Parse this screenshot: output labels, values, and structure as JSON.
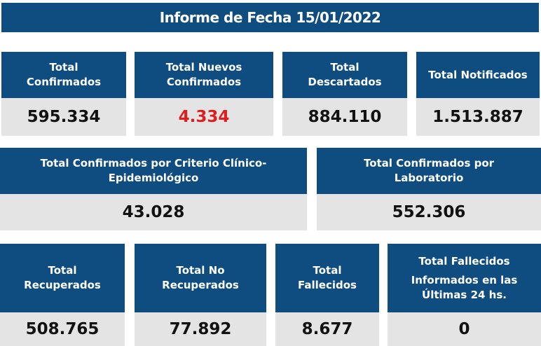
{
  "banner": {
    "title": "Informe de Fecha 15/01/2022"
  },
  "row1": [
    {
      "line1": "Total",
      "line2": "Confirmados",
      "value": "595.334"
    },
    {
      "line1": "Total Nuevos",
      "line2": "Confirmados",
      "value": "4.334"
    },
    {
      "line1": "Total",
      "line2": "Descartados",
      "value": "884.110"
    },
    {
      "line1": "Total Notificados",
      "line2": "",
      "value": "1.513.887"
    }
  ],
  "row2": [
    {
      "line1": "Total Confirmados por Criterio Clínico-",
      "line2": "Epidemiológico",
      "value": "43.028"
    },
    {
      "line1": "Total Confirmados por",
      "line2": "Laboratorio",
      "value": "552.306"
    }
  ],
  "row3": [
    {
      "line1": "Total",
      "line2": "Recuperados",
      "value": "508.765"
    },
    {
      "line1": "Total No",
      "line2": "Recuperados",
      "value": "77.892"
    },
    {
      "line1": "Total",
      "line2": "Fallecidos",
      "value": "8.677"
    },
    {
      "line1": "Total Fallecidos",
      "line2": "Informados en las",
      "line3": "Últimas 24 hs.",
      "value": "0"
    }
  ],
  "colors": {
    "header_blue": "#0f4c7f",
    "value_gray": "#e4e4e4",
    "highlight_red": "#e01c1c"
  }
}
